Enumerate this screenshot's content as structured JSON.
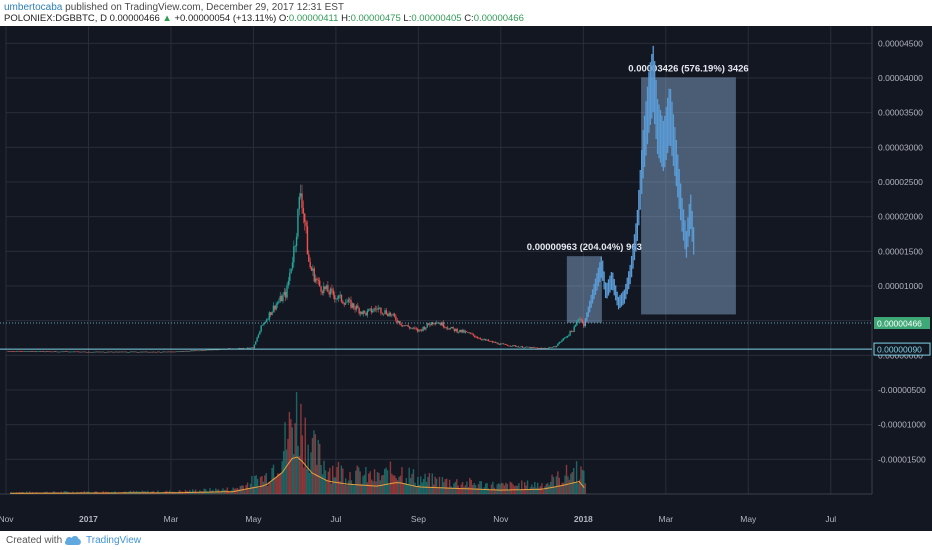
{
  "header": {
    "author": "umbertocaba",
    "published": " published on TradingView.com, December 29, 2017 12:31 EST",
    "symbol": "POLONIEX:DGBBTC, D",
    "price": "0.00000466",
    "change": "+0.00000054 (+13.11%)",
    "open_label": "O:",
    "open": "0.00000411",
    "high_label": "H:",
    "high": "0.00000475",
    "low_label": "L:",
    "low": "0.00000405",
    "close_label": "C:",
    "close": "0.00000466"
  },
  "footer": {
    "created": "Created with",
    "brand": "TradingView"
  },
  "colors": {
    "bg": "#131722",
    "grid": "#2a2e39",
    "up": "#26a69a",
    "down": "#ef5350",
    "projection": "#5b9bd5",
    "zone": "#8fb4dc",
    "volume_ma": "#e8a13c"
  },
  "chart_data": {
    "type": "candlestick",
    "symbol": "POLONIEX:DGBBTC",
    "interval": "D",
    "ylim": [
      -2e-05,
      4.75e-05
    ],
    "yticks": [
      "0.00004500",
      "0.00004000",
      "0.00003500",
      "0.00003000",
      "0.00002500",
      "0.00002000",
      "0.00001500",
      "0.00001000",
      "0.00000500",
      "0.00000000",
      "-0.00000500",
      "-0.00001000",
      "-0.00001500"
    ],
    "ytick_values": [
      4.5e-05,
      4e-05,
      3.5e-05,
      3e-05,
      2.5e-05,
      2e-05,
      1.5e-05,
      1e-05,
      5e-06,
      0,
      -5e-06,
      -1e-05,
      -1.5e-05
    ],
    "xticks": [
      "Nov",
      "2017",
      "Mar",
      "May",
      "Jul",
      "Sep",
      "Nov",
      "2018",
      "Mar",
      "May",
      "Jul"
    ],
    "xtick_months": [
      0,
      2,
      4,
      6,
      8,
      10,
      12,
      14,
      16,
      18,
      20
    ],
    "last_price_label": "0.00000466",
    "last_price": 4.66e-06,
    "support_label": "0.00000090",
    "support": 9e-07,
    "price_path": [
      {
        "m": 0,
        "v": 6e-07
      },
      {
        "m": 2,
        "v": 5e-07
      },
      {
        "m": 4,
        "v": 5e-07
      },
      {
        "m": 5.3,
        "v": 9e-07
      },
      {
        "m": 6.0,
        "v": 1.1e-06
      },
      {
        "m": 6.2,
        "v": 4.2e-06
      },
      {
        "m": 6.5,
        "v": 7e-06
      },
      {
        "m": 6.8,
        "v": 9e-06
      },
      {
        "m": 7.0,
        "v": 1.6e-05
      },
      {
        "m": 7.15,
        "v": 2.4e-05
      },
      {
        "m": 7.25,
        "v": 1.9e-05
      },
      {
        "m": 7.35,
        "v": 1.3e-05
      },
      {
        "m": 7.6,
        "v": 1e-05
      },
      {
        "m": 8.0,
        "v": 8.5e-06
      },
      {
        "m": 8.4,
        "v": 7.2e-06
      },
      {
        "m": 8.7,
        "v": 6e-06
      },
      {
        "m": 9.0,
        "v": 6.8e-06
      },
      {
        "m": 9.3,
        "v": 6e-06
      },
      {
        "m": 9.6,
        "v": 4.5e-06
      },
      {
        "m": 10.0,
        "v": 3.5e-06
      },
      {
        "m": 10.4,
        "v": 5e-06
      },
      {
        "m": 10.8,
        "v": 3.8e-06
      },
      {
        "m": 11.2,
        "v": 3.2e-06
      },
      {
        "m": 11.6,
        "v": 2.2e-06
      },
      {
        "m": 12.0,
        "v": 1.6e-06
      },
      {
        "m": 12.5,
        "v": 1.2e-06
      },
      {
        "m": 13.0,
        "v": 1e-06
      },
      {
        "m": 13.3,
        "v": 1.2e-06
      },
      {
        "m": 13.6,
        "v": 2.8e-06
      },
      {
        "m": 13.8,
        "v": 4e-06
      },
      {
        "m": 13.9,
        "v": 5.7e-06
      },
      {
        "m": 14.0,
        "v": 4.5e-06
      },
      {
        "m": 14.05,
        "v": 4.66e-06
      }
    ],
    "projection_path": [
      {
        "m": 14.05,
        "v": 4.8e-06
      },
      {
        "m": 14.2,
        "v": 8e-06
      },
      {
        "m": 14.35,
        "v": 1.1e-05
      },
      {
        "m": 14.45,
        "v": 1.3e-05
      },
      {
        "m": 14.55,
        "v": 9e-06
      },
      {
        "m": 14.7,
        "v": 1.1e-05
      },
      {
        "m": 14.85,
        "v": 7.5e-06
      },
      {
        "m": 15.0,
        "v": 8.5e-06
      },
      {
        "m": 15.15,
        "v": 1.2e-05
      },
      {
        "m": 15.3,
        "v": 1.8e-05
      },
      {
        "m": 15.45,
        "v": 2.9e-05
      },
      {
        "m": 15.6,
        "v": 3.7e-05
      },
      {
        "m": 15.7,
        "v": 4e-05
      },
      {
        "m": 15.8,
        "v": 3.3e-05
      },
      {
        "m": 15.95,
        "v": 3e-05
      },
      {
        "m": 16.1,
        "v": 3.5e-05
      },
      {
        "m": 16.25,
        "v": 2.8e-05
      },
      {
        "m": 16.4,
        "v": 2e-05
      },
      {
        "m": 16.5,
        "v": 1.6e-05
      },
      {
        "m": 16.6,
        "v": 2.1e-05
      },
      {
        "m": 16.7,
        "v": 1.5e-05
      }
    ],
    "zones": [
      {
        "label": "0.00000963 (204.04%) 963",
        "m_start": 13.6,
        "m_end": 14.45,
        "v_low": 4.7e-06,
        "v_high": 1.43e-05
      },
      {
        "label": "0.00003426 (576.19%) 3426",
        "m_start": 15.4,
        "m_end": 17.7,
        "v_low": 5.9e-06,
        "v_high": 4.01e-05
      }
    ],
    "volume_path": [
      {
        "m": 0,
        "v": 0.02
      },
      {
        "m": 4,
        "v": 0.03
      },
      {
        "m": 5.5,
        "v": 0.06
      },
      {
        "m": 6.3,
        "v": 0.22
      },
      {
        "m": 6.7,
        "v": 0.55
      },
      {
        "m": 7.0,
        "v": 1.0
      },
      {
        "m": 7.2,
        "v": 0.82
      },
      {
        "m": 7.4,
        "v": 0.55
      },
      {
        "m": 7.8,
        "v": 0.33
      },
      {
        "m": 8.3,
        "v": 0.25
      },
      {
        "m": 9.0,
        "v": 0.2
      },
      {
        "m": 9.5,
        "v": 0.3
      },
      {
        "m": 10.0,
        "v": 0.18
      },
      {
        "m": 11.0,
        "v": 0.14
      },
      {
        "m": 12.0,
        "v": 0.1
      },
      {
        "m": 13.0,
        "v": 0.12
      },
      {
        "m": 13.5,
        "v": 0.22
      },
      {
        "m": 13.9,
        "v": 0.32
      },
      {
        "m": 14.05,
        "v": 0.12
      }
    ]
  }
}
